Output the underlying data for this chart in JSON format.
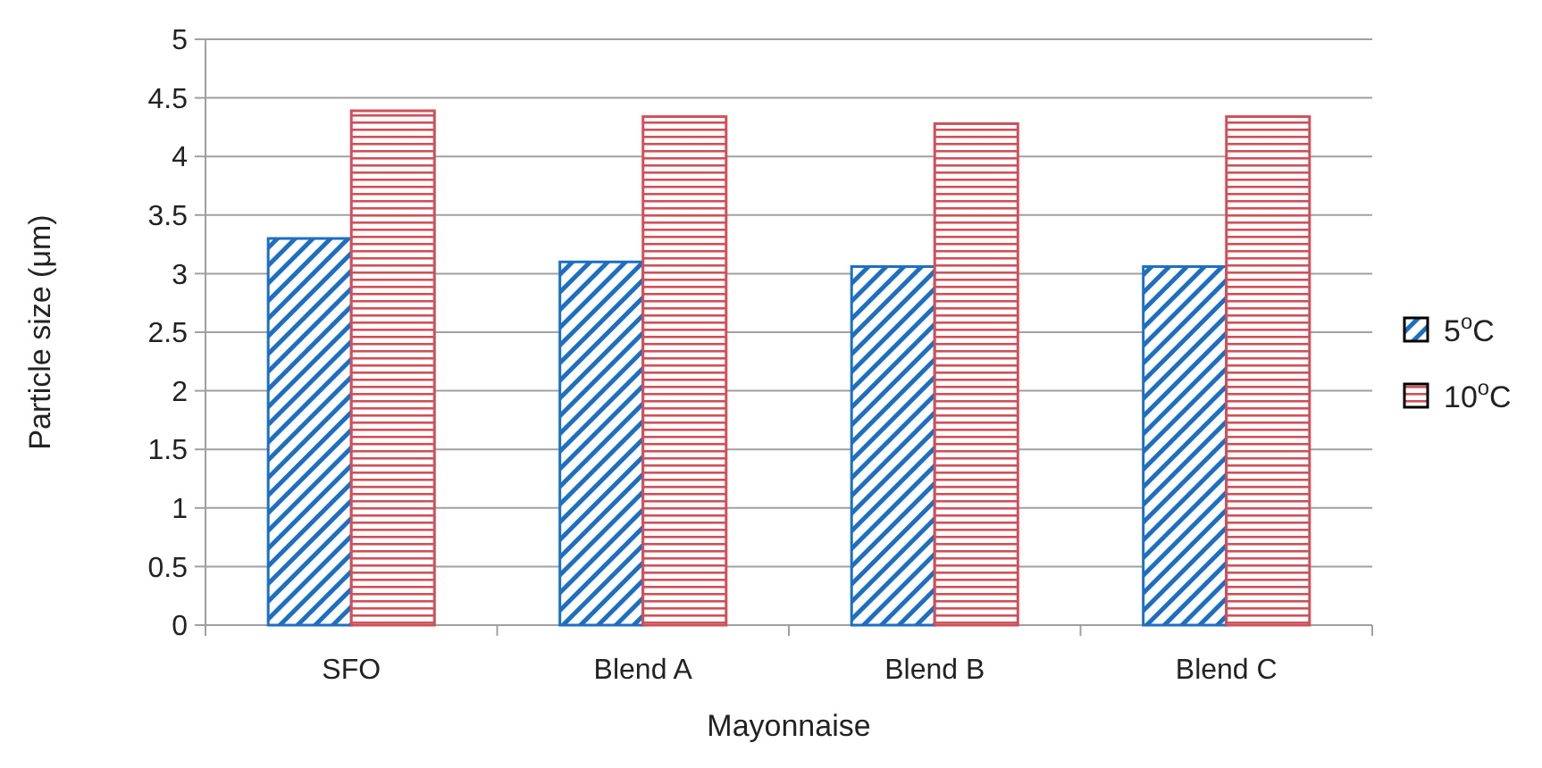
{
  "chart_data": {
    "type": "bar",
    "xlabel": "Mayonnaise",
    "ylabel": "Particle size (μm)",
    "categories": [
      "SFO",
      "Blend A",
      "Blend B",
      "Blend C"
    ],
    "series": [
      {
        "name": "5$^{o}$C",
        "color": "#1f6fc0",
        "values": [
          3.3,
          3.1,
          3.06,
          3.06
        ]
      },
      {
        "name": "10$^{o}$C",
        "color": "#d0505a",
        "values": [
          4.39,
          4.34,
          4.28,
          4.34
        ]
      }
    ],
    "ylim": [
      0,
      5
    ],
    "yticks": [
      0,
      0.5,
      1,
      1.5,
      2,
      2.5,
      3,
      3.5,
      4,
      4.5,
      5
    ],
    "grid": "y",
    "legend": "right"
  }
}
